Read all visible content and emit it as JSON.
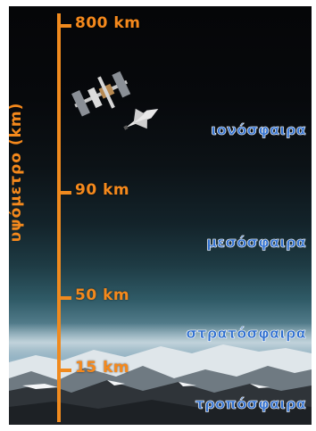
{
  "axis": {
    "title": "υψόμετρο (km)",
    "ticks": [
      "800 km",
      "90 km",
      "50 km",
      "15 km"
    ]
  },
  "layers": [
    "ιονόσφαιρα",
    "μεσόσφαιρα",
    "στρατόσφαιρα",
    "τροπόσφαιρα"
  ],
  "objects": {
    "station": "space-station-icon",
    "shuttle": "space-shuttle-icon"
  },
  "colors": {
    "axis": "#f08a1e",
    "layer_label": "#2f6fcf"
  }
}
